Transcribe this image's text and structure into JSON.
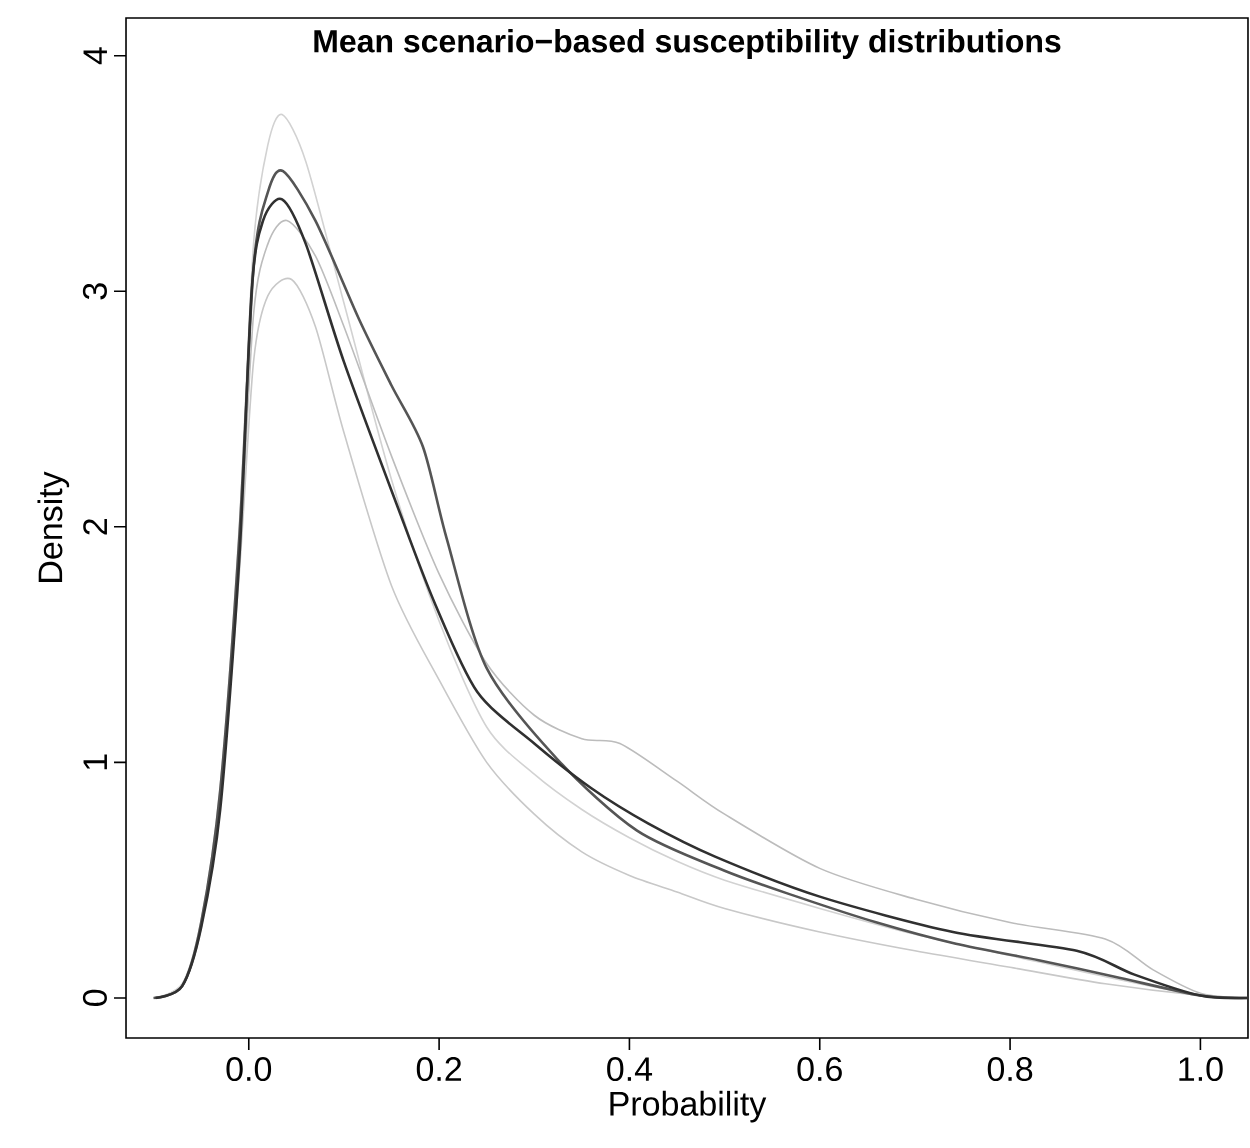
{
  "chart_data": {
    "type": "line",
    "title": "Mean scenario−based susceptibility distributions",
    "xlabel": "Probability",
    "ylabel": "Density",
    "xlim": [
      -0.129,
      1.05
    ],
    "ylim": [
      -0.17,
      4.16
    ],
    "xticks": [
      {
        "value": 0,
        "label": "0.0"
      },
      {
        "value": 0.2,
        "label": "0.2"
      },
      {
        "value": 0.4,
        "label": "0.4"
      },
      {
        "value": 0.6,
        "label": "0.6"
      },
      {
        "value": 0.8,
        "label": "0.8"
      },
      {
        "value": 1,
        "label": "1.0"
      }
    ],
    "yticks": [
      0,
      1,
      2,
      3,
      4
    ],
    "marker": "none",
    "line_style": "solid",
    "series": [
      {
        "color": "#d2d2d2",
        "x": [
          -0.1,
          -0.07,
          -0.05,
          -0.03,
          -0.01,
          0.005,
          0.02,
          0.035,
          0.06,
          0.1,
          0.15,
          0.2,
          0.25,
          0.3,
          0.35,
          0.4,
          0.45,
          0.5,
          0.6,
          0.7,
          0.8,
          0.9,
          1.0,
          1.05
        ],
        "values": [
          0,
          0.06,
          0.33,
          0.9,
          2.0,
          3.2,
          3.62,
          3.75,
          3.55,
          2.95,
          2.2,
          1.6,
          1.15,
          0.95,
          0.8,
          0.68,
          0.58,
          0.5,
          0.38,
          0.27,
          0.18,
          0.09,
          0.01,
          0
        ]
      },
      {
        "color": "#c8c8c8",
        "x": [
          -0.1,
          -0.07,
          -0.05,
          -0.03,
          -0.01,
          0.005,
          0.02,
          0.045,
          0.07,
          0.1,
          0.15,
          0.2,
          0.25,
          0.3,
          0.35,
          0.4,
          0.45,
          0.5,
          0.6,
          0.7,
          0.8,
          0.9,
          1.0,
          1.05
        ],
        "values": [
          0,
          0.05,
          0.3,
          0.85,
          1.8,
          2.7,
          2.98,
          3.05,
          2.85,
          2.4,
          1.75,
          1.35,
          1.0,
          0.78,
          0.62,
          0.52,
          0.45,
          0.38,
          0.28,
          0.2,
          0.13,
          0.06,
          0.01,
          0
        ]
      },
      {
        "color": "#bcbcbc",
        "x": [
          -0.1,
          -0.07,
          -0.05,
          -0.03,
          -0.01,
          0.005,
          0.02,
          0.04,
          0.07,
          0.1,
          0.15,
          0.2,
          0.25,
          0.3,
          0.35,
          0.39,
          0.45,
          0.5,
          0.6,
          0.7,
          0.8,
          0.9,
          0.95,
          1.0,
          1.05
        ],
        "values": [
          0,
          0.05,
          0.3,
          0.85,
          1.85,
          2.9,
          3.2,
          3.3,
          3.15,
          2.85,
          2.3,
          1.8,
          1.42,
          1.2,
          1.1,
          1.08,
          0.92,
          0.78,
          0.55,
          0.42,
          0.32,
          0.25,
          0.12,
          0.02,
          0
        ]
      },
      {
        "color": "#555555",
        "x": [
          -0.1,
          -0.07,
          -0.05,
          -0.03,
          -0.01,
          0.005,
          0.02,
          0.036,
          0.07,
          0.116,
          0.15,
          0.183,
          0.208,
          0.25,
          0.325,
          0.408,
          0.5,
          0.576,
          0.66,
          0.743,
          0.83,
          0.91,
          1.0,
          1.05
        ],
        "values": [
          0,
          0.05,
          0.32,
          0.88,
          1.95,
          3.1,
          3.42,
          3.51,
          3.3,
          2.88,
          2.6,
          2.34,
          1.95,
          1.4,
          1.01,
          0.71,
          0.54,
          0.43,
          0.32,
          0.23,
          0.16,
          0.09,
          0.01,
          0
        ]
      },
      {
        "color": "#303030",
        "x": [
          -0.098,
          -0.07,
          -0.05,
          -0.03,
          -0.01,
          0.003,
          0.015,
          0.035,
          0.06,
          0.1,
          0.155,
          0.195,
          0.24,
          0.3,
          0.36,
          0.42,
          0.49,
          0.6,
          0.74,
          0.87,
          0.93,
          1.0,
          1.05
        ],
        "values": [
          0,
          0.05,
          0.3,
          0.8,
          1.86,
          3.0,
          3.3,
          3.39,
          3.2,
          2.7,
          2.1,
          1.68,
          1.3,
          1.08,
          0.89,
          0.74,
          0.6,
          0.43,
          0.28,
          0.2,
          0.1,
          0.01,
          0
        ]
      }
    ]
  }
}
